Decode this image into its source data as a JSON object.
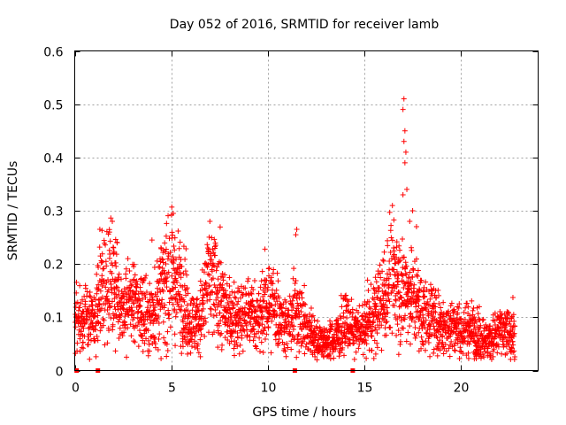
{
  "chart_data": {
    "type": "scatter",
    "title": "Day 052 of 2016, SRMTID for receiver lamb",
    "xlabel": "GPS time / hours",
    "ylabel": "SRMTID / TECUs",
    "xlim": [
      0,
      24
    ],
    "ylim": [
      0,
      0.6
    ],
    "xticks": [
      0,
      5,
      10,
      15,
      20
    ],
    "yticks": [
      0,
      0.1,
      0.2,
      0.3,
      0.4,
      0.5,
      0.6
    ],
    "grid": true,
    "marker": "+",
    "color": "#ff0000",
    "zero_value_markers_x": [
      0.1,
      1.2,
      11.4,
      14.4
    ],
    "trend": {
      "x": [
        0.0,
        0.5,
        1.0,
        1.3,
        1.6,
        2.0,
        2.5,
        3.0,
        3.5,
        4.0,
        4.5,
        5.0,
        5.5,
        6.0,
        6.5,
        7.0,
        7.5,
        8.0,
        8.5,
        9.0,
        9.5,
        10.0,
        10.5,
        11.0,
        11.5,
        12.0,
        12.5,
        13.0,
        13.5,
        14.0,
        14.5,
        15.0,
        15.5,
        16.0,
        16.5,
        17.0,
        17.5,
        18.0,
        18.5,
        19.0,
        19.5,
        20.0,
        20.5,
        21.0,
        21.5,
        22.0,
        22.5,
        22.8
      ],
      "y": [
        0.1,
        0.1,
        0.09,
        0.13,
        0.19,
        0.16,
        0.12,
        0.13,
        0.11,
        0.1,
        0.15,
        0.17,
        0.15,
        0.09,
        0.1,
        0.17,
        0.14,
        0.1,
        0.1,
        0.11,
        0.1,
        0.13,
        0.11,
        0.08,
        0.12,
        0.08,
        0.06,
        0.05,
        0.06,
        0.09,
        0.07,
        0.08,
        0.1,
        0.14,
        0.17,
        0.15,
        0.14,
        0.11,
        0.1,
        0.08,
        0.09,
        0.07,
        0.08,
        0.06,
        0.06,
        0.07,
        0.07,
        0.07
      ]
    },
    "spikes": [
      {
        "x": 17.05,
        "y": 0.51
      },
      {
        "x": 17.0,
        "y": 0.49
      },
      {
        "x": 17.1,
        "y": 0.45
      },
      {
        "x": 17.05,
        "y": 0.43
      },
      {
        "x": 17.15,
        "y": 0.41
      },
      {
        "x": 17.1,
        "y": 0.39
      },
      {
        "x": 17.2,
        "y": 0.34
      },
      {
        "x": 17.0,
        "y": 0.33
      },
      {
        "x": 17.5,
        "y": 0.3
      },
      {
        "x": 17.35,
        "y": 0.28
      },
      {
        "x": 17.7,
        "y": 0.27
      },
      {
        "x": 5.1,
        "y": 0.295
      },
      {
        "x": 7.0,
        "y": 0.28
      },
      {
        "x": 1.3,
        "y": 0.265
      },
      {
        "x": 1.8,
        "y": 0.26
      },
      {
        "x": 11.5,
        "y": 0.265
      },
      {
        "x": 11.45,
        "y": 0.255
      },
      {
        "x": 4.0,
        "y": 0.245
      },
      {
        "x": 2.2,
        "y": 0.24
      }
    ]
  }
}
